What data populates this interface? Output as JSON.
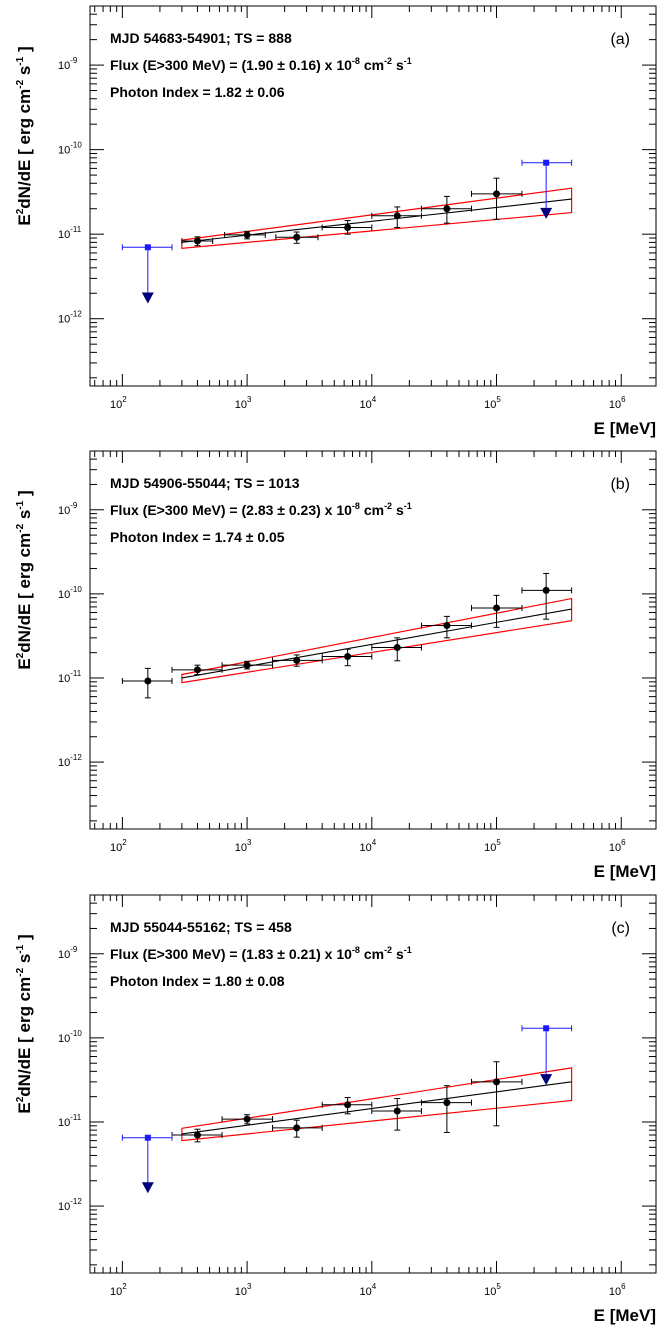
{
  "chart_data": [
    {
      "type": "scatter",
      "panel_label": "(a)",
      "annotation": {
        "line1": "MJD 54683-54901;  TS = 888",
        "line2_main": "Flux (E>300 MeV) = (1.90 ± 0.16) x 10",
        "line2_exp1": "-8",
        "line2_tail": " cm",
        "line2_exp2": "-2",
        "line2_tail2": " s",
        "line2_exp3": "-1",
        "line3": "Photon Index = 1.82 ± 0.06"
      },
      "xlabel": "E [MeV]",
      "ylabel": {
        "a": "E",
        "a_sup": "2",
        "b": "dN/dE [ erg cm",
        "b_sup": "-2",
        "c": " s",
        "c_sup": "-1",
        "d": " ]"
      },
      "xscale": "log",
      "yscale": "log",
      "xlim": [
        55,
        1900000
      ],
      "ylim": [
        1.6e-13,
        5e-09
      ],
      "xticks": [
        {
          "base": "10",
          "exp": "2"
        },
        {
          "base": "10",
          "exp": "3"
        },
        {
          "base": "10",
          "exp": "4"
        },
        {
          "base": "10",
          "exp": "5"
        },
        {
          "base": "10",
          "exp": "6"
        }
      ],
      "yticks": [
        {
          "base": "10",
          "exp": "-12"
        },
        {
          "base": "10",
          "exp": "-11"
        },
        {
          "base": "10",
          "exp": "-10"
        },
        {
          "base": "10",
          "exp": "-9"
        }
      ],
      "points": [
        {
          "x": 400,
          "y": 8.3e-12,
          "xlo": 300,
          "xhi": 530,
          "ylo": 7.3e-12,
          "yhi": 9.3e-12
        },
        {
          "x": 1000,
          "y": 9.8e-12,
          "xlo": 660,
          "xhi": 1400,
          "ylo": 8.8e-12,
          "yhi": 1.08e-11
        },
        {
          "x": 2500,
          "y": 9.2e-12,
          "xlo": 1700,
          "xhi": 3700,
          "ylo": 7.8e-12,
          "yhi": 1.06e-11
        },
        {
          "x": 6400,
          "y": 1.2e-11,
          "xlo": 4000,
          "xhi": 10000,
          "ylo": 1e-11,
          "yhi": 1.45e-11
        },
        {
          "x": 16000,
          "y": 1.65e-11,
          "xlo": 10000,
          "xhi": 25000,
          "ylo": 1.2e-11,
          "yhi": 2.1e-11
        },
        {
          "x": 40000,
          "y": 2e-11,
          "xlo": 25000,
          "xhi": 63000,
          "ylo": 1.35e-11,
          "yhi": 2.8e-11
        },
        {
          "x": 100000,
          "y": 3e-11,
          "xlo": 63000,
          "xhi": 160000,
          "ylo": 1.5e-11,
          "yhi": 4.6e-11
        }
      ],
      "upper_limits": [
        {
          "x": 160,
          "y": 7e-12,
          "xlo": 100,
          "xhi": 250,
          "arrow_to": 1.6e-12
        },
        {
          "x": 250000,
          "y": 7e-11,
          "xlo": 160000,
          "xhi": 400000,
          "arrow_to": 1.6e-11
        }
      ],
      "model": {
        "xmin": 300,
        "xmax": 400000,
        "y_at_xmin": 8e-12,
        "y_at_xmax": 2.6e-11,
        "band_lo": [
          6.8e-12,
          1.8e-11
        ],
        "band_hi": [
          8.5e-12,
          3.5e-11
        ]
      }
    },
    {
      "type": "scatter",
      "panel_label": "(b)",
      "annotation": {
        "line1": "MJD 54906-55044;  TS = 1013",
        "line2_main": "Flux (E>300 MeV) = (2.83 ± 0.23) x 10",
        "line2_exp1": "-8",
        "line2_tail": " cm",
        "line2_exp2": "-2",
        "line2_tail2": " s",
        "line2_exp3": "-1",
        "line3": "Photon Index = 1.74 ± 0.05"
      },
      "xlabel": "E [MeV]",
      "ylabel": {
        "a": "E",
        "a_sup": "2",
        "b": "dN/dE [ erg cm",
        "b_sup": "-2",
        "c": " s",
        "c_sup": "-1",
        "d": " ]"
      },
      "xscale": "log",
      "yscale": "log",
      "xlim": [
        55,
        1900000
      ],
      "ylim": [
        1.6e-13,
        5e-09
      ],
      "xticks": [
        {
          "base": "10",
          "exp": "2"
        },
        {
          "base": "10",
          "exp": "3"
        },
        {
          "base": "10",
          "exp": "4"
        },
        {
          "base": "10",
          "exp": "5"
        },
        {
          "base": "10",
          "exp": "6"
        }
      ],
      "yticks": [
        {
          "base": "10",
          "exp": "-12"
        },
        {
          "base": "10",
          "exp": "-11"
        },
        {
          "base": "10",
          "exp": "-10"
        },
        {
          "base": "10",
          "exp": "-9"
        }
      ],
      "points": [
        {
          "x": 160,
          "y": 9.2e-12,
          "xlo": 100,
          "xhi": 250,
          "ylo": 5.8e-12,
          "yhi": 1.3e-11
        },
        {
          "x": 400,
          "y": 1.25e-11,
          "xlo": 250,
          "xhi": 630,
          "ylo": 1.1e-11,
          "yhi": 1.42e-11
        },
        {
          "x": 1000,
          "y": 1.42e-11,
          "xlo": 630,
          "xhi": 1600,
          "ylo": 1.28e-11,
          "yhi": 1.58e-11
        },
        {
          "x": 2500,
          "y": 1.62e-11,
          "xlo": 1600,
          "xhi": 4000,
          "ylo": 1.38e-11,
          "yhi": 1.88e-11
        },
        {
          "x": 6400,
          "y": 1.8e-11,
          "xlo": 4000,
          "xhi": 10000,
          "ylo": 1.4e-11,
          "yhi": 2.2e-11
        },
        {
          "x": 16000,
          "y": 2.3e-11,
          "xlo": 10000,
          "xhi": 25000,
          "ylo": 1.6e-11,
          "yhi": 3e-11
        },
        {
          "x": 40000,
          "y": 4.2e-11,
          "xlo": 25000,
          "xhi": 63000,
          "ylo": 3e-11,
          "yhi": 5.4e-11
        },
        {
          "x": 100000,
          "y": 6.8e-11,
          "xlo": 63000,
          "xhi": 160000,
          "ylo": 4e-11,
          "yhi": 9.6e-11
        },
        {
          "x": 250000,
          "y": 1.1e-10,
          "xlo": 160000,
          "xhi": 400000,
          "ylo": 5e-11,
          "yhi": 1.75e-10
        }
      ],
      "upper_limits": [],
      "model": {
        "xmin": 300,
        "xmax": 400000,
        "y_at_xmin": 1e-11,
        "y_at_xmax": 6.6e-11,
        "band_lo": [
          8.8e-12,
          4.8e-11
        ],
        "band_hi": [
          1.1e-11,
          8.8e-11
        ]
      }
    },
    {
      "type": "scatter",
      "panel_label": "(c)",
      "annotation": {
        "line1": "MJD 55044-55162;  TS = 458",
        "line2_main": "Flux (E>300 MeV) = (1.83 ± 0.21) x 10",
        "line2_exp1": "-8",
        "line2_tail": " cm",
        "line2_exp2": "-2",
        "line2_tail2": " s",
        "line2_exp3": "-1",
        "line3": "Photon Index = 1.80 ± 0.08"
      },
      "xlabel": "E [MeV]",
      "ylabel": {
        "a": "E",
        "a_sup": "2",
        "b": "dN/dE [ erg cm",
        "b_sup": "-2",
        "c": " s",
        "c_sup": "-1",
        "d": " ]"
      },
      "xscale": "log",
      "yscale": "log",
      "xlim": [
        55,
        1900000
      ],
      "ylim": [
        1.6e-13,
        5e-09
      ],
      "xticks": [
        {
          "base": "10",
          "exp": "2"
        },
        {
          "base": "10",
          "exp": "3"
        },
        {
          "base": "10",
          "exp": "4"
        },
        {
          "base": "10",
          "exp": "5"
        },
        {
          "base": "10",
          "exp": "6"
        }
      ],
      "yticks": [
        {
          "base": "10",
          "exp": "-12"
        },
        {
          "base": "10",
          "exp": "-11"
        },
        {
          "base": "10",
          "exp": "-10"
        },
        {
          "base": "10",
          "exp": "-9"
        }
      ],
      "points": [
        {
          "x": 400,
          "y": 7e-12,
          "xlo": 250,
          "xhi": 630,
          "ylo": 5.8e-12,
          "yhi": 8.2e-12
        },
        {
          "x": 1000,
          "y": 1.08e-11,
          "xlo": 630,
          "xhi": 1600,
          "ylo": 9.5e-12,
          "yhi": 1.22e-11
        },
        {
          "x": 2500,
          "y": 8.5e-12,
          "xlo": 1600,
          "xhi": 4000,
          "ylo": 6.6e-12,
          "yhi": 1.05e-11
        },
        {
          "x": 6400,
          "y": 1.6e-11,
          "xlo": 4000,
          "xhi": 10000,
          "ylo": 1.25e-11,
          "yhi": 1.95e-11
        },
        {
          "x": 16000,
          "y": 1.35e-11,
          "xlo": 10000,
          "xhi": 25000,
          "ylo": 8e-12,
          "yhi": 1.9e-11
        },
        {
          "x": 40000,
          "y": 1.7e-11,
          "xlo": 25000,
          "xhi": 63000,
          "ylo": 7.5e-12,
          "yhi": 2.7e-11
        },
        {
          "x": 100000,
          "y": 3e-11,
          "xlo": 63000,
          "xhi": 160000,
          "ylo": 9e-12,
          "yhi": 5.2e-11
        }
      ],
      "upper_limits": [
        {
          "x": 160,
          "y": 6.5e-12,
          "xlo": 100,
          "xhi": 250,
          "arrow_to": 1.5e-12
        },
        {
          "x": 250000,
          "y": 1.3e-10,
          "xlo": 160000,
          "xhi": 400000,
          "arrow_to": 2.9e-11
        }
      ],
      "model": {
        "xmin": 300,
        "xmax": 400000,
        "y_at_xmin": 7.2e-12,
        "y_at_xmax": 3e-11,
        "band_lo": [
          6e-12,
          1.8e-11
        ],
        "band_hi": [
          8.4e-12,
          4.4e-11
        ]
      }
    }
  ],
  "colors": {
    "data": "#000000",
    "upper_limit_line": "#1a1aff",
    "upper_limit_arrow": "#00007a",
    "band": "#ff0000",
    "model": "#000000"
  }
}
